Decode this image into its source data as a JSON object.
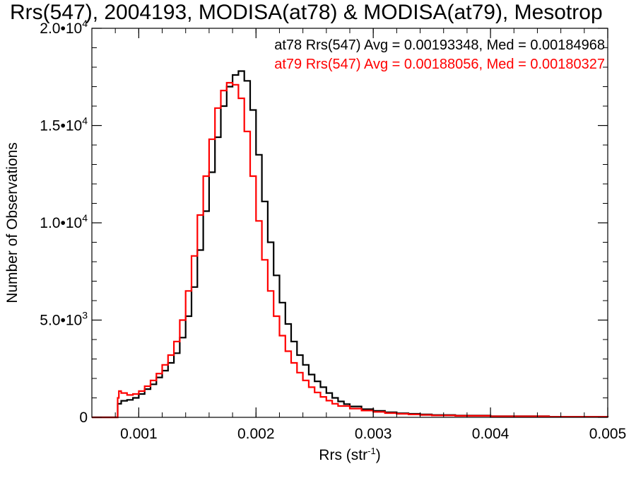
{
  "chart_data": {
    "type": "line",
    "title": "Rrs(547), 2004193, MODISA(at78) & MODISA(at79), Mesotrop",
    "xlabel": "Rrs (str",
    "xlabel_sup": "-1",
    "xlabel_close": ")",
    "ylabel": "Number of Observations",
    "xlim": [
      0.0006,
      0.005
    ],
    "ylim": [
      0,
      20000
    ],
    "x_ticks": [
      {
        "value": 0.001,
        "label": "0.001"
      },
      {
        "value": 0.002,
        "label": "0.002"
      },
      {
        "value": 0.003,
        "label": "0.003"
      },
      {
        "value": 0.004,
        "label": "0.004"
      },
      {
        "value": 0.005,
        "label": "0.005"
      }
    ],
    "y_ticks": [
      {
        "value": 0,
        "mantissa": "0",
        "exp": ""
      },
      {
        "value": 5000,
        "mantissa": "5.0•10",
        "exp": "3"
      },
      {
        "value": 10000,
        "mantissa": "1.0•10",
        "exp": "4"
      },
      {
        "value": 15000,
        "mantissa": "1.5•10",
        "exp": "4"
      },
      {
        "value": 20000,
        "mantissa": "2.0•10",
        "exp": "4"
      }
    ],
    "annotations": [
      {
        "text": "at78 Rrs(547) Avg = 0.00193348, Med = 0.00184968",
        "color": "#000000"
      },
      {
        "text": "at79 Rrs(547) Avg = 0.00188056, Med = 0.00180327",
        "color": "#ff0000"
      }
    ],
    "series": [
      {
        "color": "#000000",
        "step": true,
        "points": [
          [
            0.0006,
            0
          ],
          [
            0.00077,
            0
          ],
          [
            0.0008,
            0
          ],
          [
            0.00082,
            700
          ],
          [
            0.00085,
            850
          ],
          [
            0.0009,
            900
          ],
          [
            0.00095,
            1000
          ],
          [
            0.001,
            1200
          ],
          [
            0.00105,
            1450
          ],
          [
            0.0011,
            1700
          ],
          [
            0.00115,
            2050
          ],
          [
            0.0012,
            2400
          ],
          [
            0.00125,
            2800
          ],
          [
            0.0013,
            3300
          ],
          [
            0.00135,
            4100
          ],
          [
            0.0014,
            5200
          ],
          [
            0.00145,
            6700
          ],
          [
            0.0015,
            8600
          ],
          [
            0.00155,
            10600
          ],
          [
            0.0016,
            12600
          ],
          [
            0.00165,
            14400
          ],
          [
            0.0017,
            16000
          ],
          [
            0.00175,
            17000
          ],
          [
            0.0018,
            17600
          ],
          [
            0.00185,
            17800
          ],
          [
            0.0019,
            17300
          ],
          [
            0.00195,
            15800
          ],
          [
            0.002,
            13500
          ],
          [
            0.00205,
            11100
          ],
          [
            0.0021,
            9000
          ],
          [
            0.00215,
            7300
          ],
          [
            0.0022,
            5900
          ],
          [
            0.00225,
            4800
          ],
          [
            0.0023,
            3900
          ],
          [
            0.00235,
            3200
          ],
          [
            0.0024,
            2700
          ],
          [
            0.00245,
            2200
          ],
          [
            0.0025,
            1850
          ],
          [
            0.00255,
            1550
          ],
          [
            0.0026,
            1250
          ],
          [
            0.00265,
            1000
          ],
          [
            0.0027,
            820
          ],
          [
            0.00275,
            680
          ],
          [
            0.0028,
            560
          ],
          [
            0.0029,
            420
          ],
          [
            0.003,
            330
          ],
          [
            0.0031,
            260
          ],
          [
            0.0032,
            210
          ],
          [
            0.0033,
            180
          ],
          [
            0.0034,
            150
          ],
          [
            0.0035,
            120
          ],
          [
            0.0037,
            90
          ],
          [
            0.004,
            60
          ],
          [
            0.0045,
            30
          ],
          [
            0.005,
            15
          ]
        ]
      },
      {
        "color": "#ff0000",
        "step": true,
        "points": [
          [
            0.0006,
            0
          ],
          [
            0.00077,
            0
          ],
          [
            0.0008,
            0
          ],
          [
            0.00082,
            1000
          ],
          [
            0.00083,
            1350
          ],
          [
            0.00085,
            1250
          ],
          [
            0.0009,
            1150
          ],
          [
            0.00095,
            1200
          ],
          [
            0.001,
            1350
          ],
          [
            0.00105,
            1600
          ],
          [
            0.0011,
            1900
          ],
          [
            0.00115,
            2250
          ],
          [
            0.0012,
            2700
          ],
          [
            0.00125,
            3200
          ],
          [
            0.0013,
            3900
          ],
          [
            0.00135,
            5000
          ],
          [
            0.0014,
            6500
          ],
          [
            0.00145,
            8300
          ],
          [
            0.0015,
            10400
          ],
          [
            0.00155,
            12400
          ],
          [
            0.0016,
            14300
          ],
          [
            0.00165,
            15900
          ],
          [
            0.0017,
            16800
          ],
          [
            0.00175,
            17200
          ],
          [
            0.0018,
            17100
          ],
          [
            0.00185,
            16400
          ],
          [
            0.0019,
            14700
          ],
          [
            0.00195,
            12400
          ],
          [
            0.002,
            10100
          ],
          [
            0.00205,
            8100
          ],
          [
            0.0021,
            6500
          ],
          [
            0.00215,
            5200
          ],
          [
            0.0022,
            4200
          ],
          [
            0.00225,
            3400
          ],
          [
            0.0023,
            2800
          ],
          [
            0.00235,
            2300
          ],
          [
            0.0024,
            1900
          ],
          [
            0.00245,
            1550
          ],
          [
            0.0025,
            1280
          ],
          [
            0.00255,
            1050
          ],
          [
            0.0026,
            860
          ],
          [
            0.00265,
            700
          ],
          [
            0.0027,
            580
          ],
          [
            0.0028,
            450
          ],
          [
            0.0029,
            350
          ],
          [
            0.003,
            280
          ],
          [
            0.0031,
            220
          ],
          [
            0.0032,
            180
          ],
          [
            0.0033,
            150
          ],
          [
            0.0034,
            125
          ],
          [
            0.0035,
            100
          ],
          [
            0.0037,
            75
          ],
          [
            0.004,
            50
          ],
          [
            0.0045,
            25
          ],
          [
            0.005,
            12
          ]
        ]
      }
    ]
  }
}
